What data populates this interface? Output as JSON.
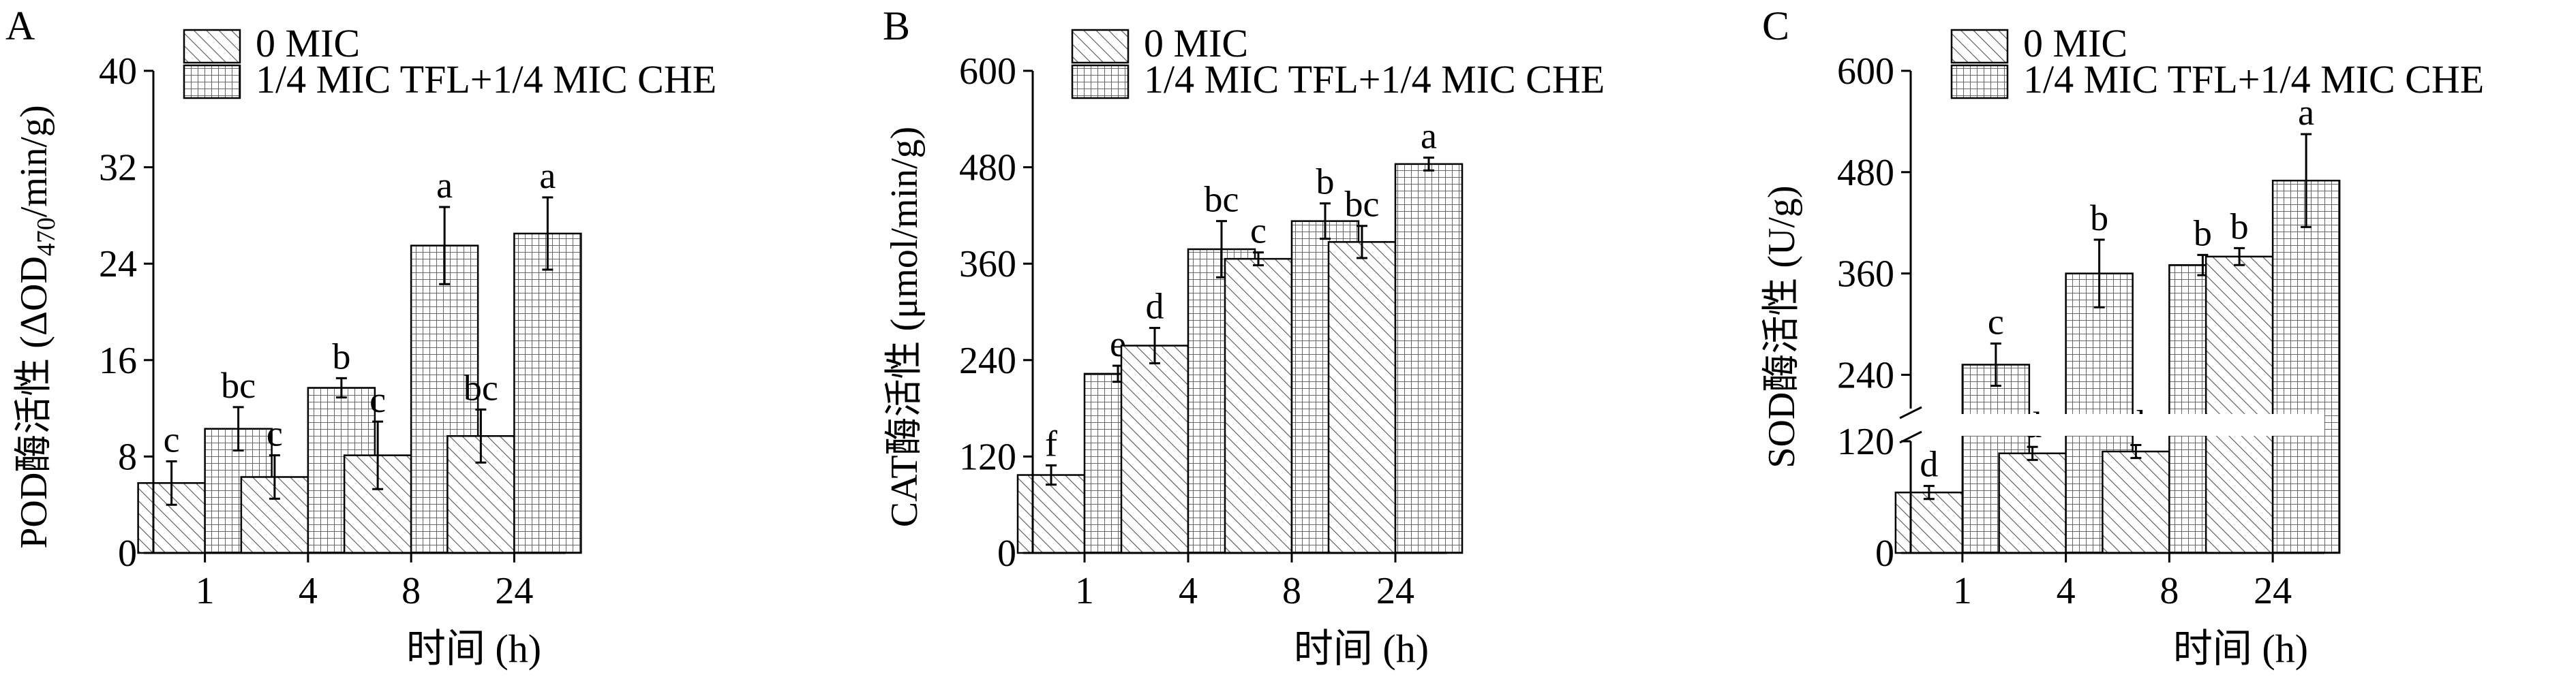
{
  "chart_data": [
    {
      "panel_label": "A",
      "type": "bar",
      "categories": [
        "1",
        "4",
        "8",
        "24"
      ],
      "tick_labels": [
        "0",
        "8",
        "16",
        "24",
        "32",
        "40"
      ],
      "ylim": [
        0,
        40
      ],
      "xlabel": "时间 (h)",
      "ylabel_main": "POD酶活性 (ΔOD",
      "ylabel_sub": "470",
      "ylabel_end": "/min/g)",
      "series": [
        {
          "name": "0 MIC",
          "values": [
            5.8,
            6.3,
            8.1,
            9.7
          ],
          "errors": [
            1.8,
            1.8,
            2.8,
            2.2
          ],
          "letters": [
            "c",
            "c",
            "c",
            "bc"
          ]
        },
        {
          "name": "1/4 MIC TFL+1/4 MIC CHE",
          "values": [
            10.3,
            13.7,
            25.5,
            26.5
          ],
          "errors": [
            1.8,
            0.8,
            3.2,
            3.0
          ],
          "letters": [
            "bc",
            "b",
            "a",
            "a"
          ]
        }
      ]
    },
    {
      "panel_label": "B",
      "type": "bar",
      "categories": [
        "1",
        "4",
        "8",
        "24"
      ],
      "tick_labels": [
        "0",
        "120",
        "240",
        "360",
        "480",
        "600"
      ],
      "ylim": [
        0,
        600
      ],
      "xlabel": "时间 (h)",
      "ylabel": "CAT酶活性 (μmol/min/g)",
      "series": [
        {
          "name": "0 MIC",
          "values": [
            97,
            258,
            366,
            387
          ],
          "errors": [
            12,
            22,
            8,
            20
          ],
          "letters": [
            "f",
            "d",
            "c",
            "bc"
          ]
        },
        {
          "name": "1/4 MIC TFL+1/4 MIC CHE",
          "values": [
            223,
            378,
            413,
            484
          ],
          "errors": [
            10,
            35,
            22,
            8
          ],
          "letters": [
            "e",
            "bc",
            "b",
            "a"
          ]
        }
      ]
    },
    {
      "panel_label": "C",
      "type": "bar",
      "categories": [
        "1",
        "4",
        "8",
        "24"
      ],
      "tick_labels": [
        "0",
        "120",
        "240",
        "360",
        "480",
        "600"
      ],
      "ylim": [
        0,
        600
      ],
      "axis_break": [
        120,
        200
      ],
      "xlabel": "时间 (h)",
      "ylabel": "SOD酶活性 (U/g)",
      "series": [
        {
          "name": "0 MIC",
          "values": [
            65,
            107,
            109,
            380
          ],
          "errors": [
            7,
            7,
            7,
            10
          ],
          "letters": [
            "d",
            "d",
            "d",
            "b"
          ]
        },
        {
          "name": "1/4 MIC TFL+1/4 MIC CHE",
          "values": [
            252,
            360,
            370,
            470
          ],
          "errors": [
            25,
            40,
            12,
            55
          ],
          "letters": [
            "c",
            "b",
            "b",
            "a"
          ]
        }
      ]
    }
  ]
}
